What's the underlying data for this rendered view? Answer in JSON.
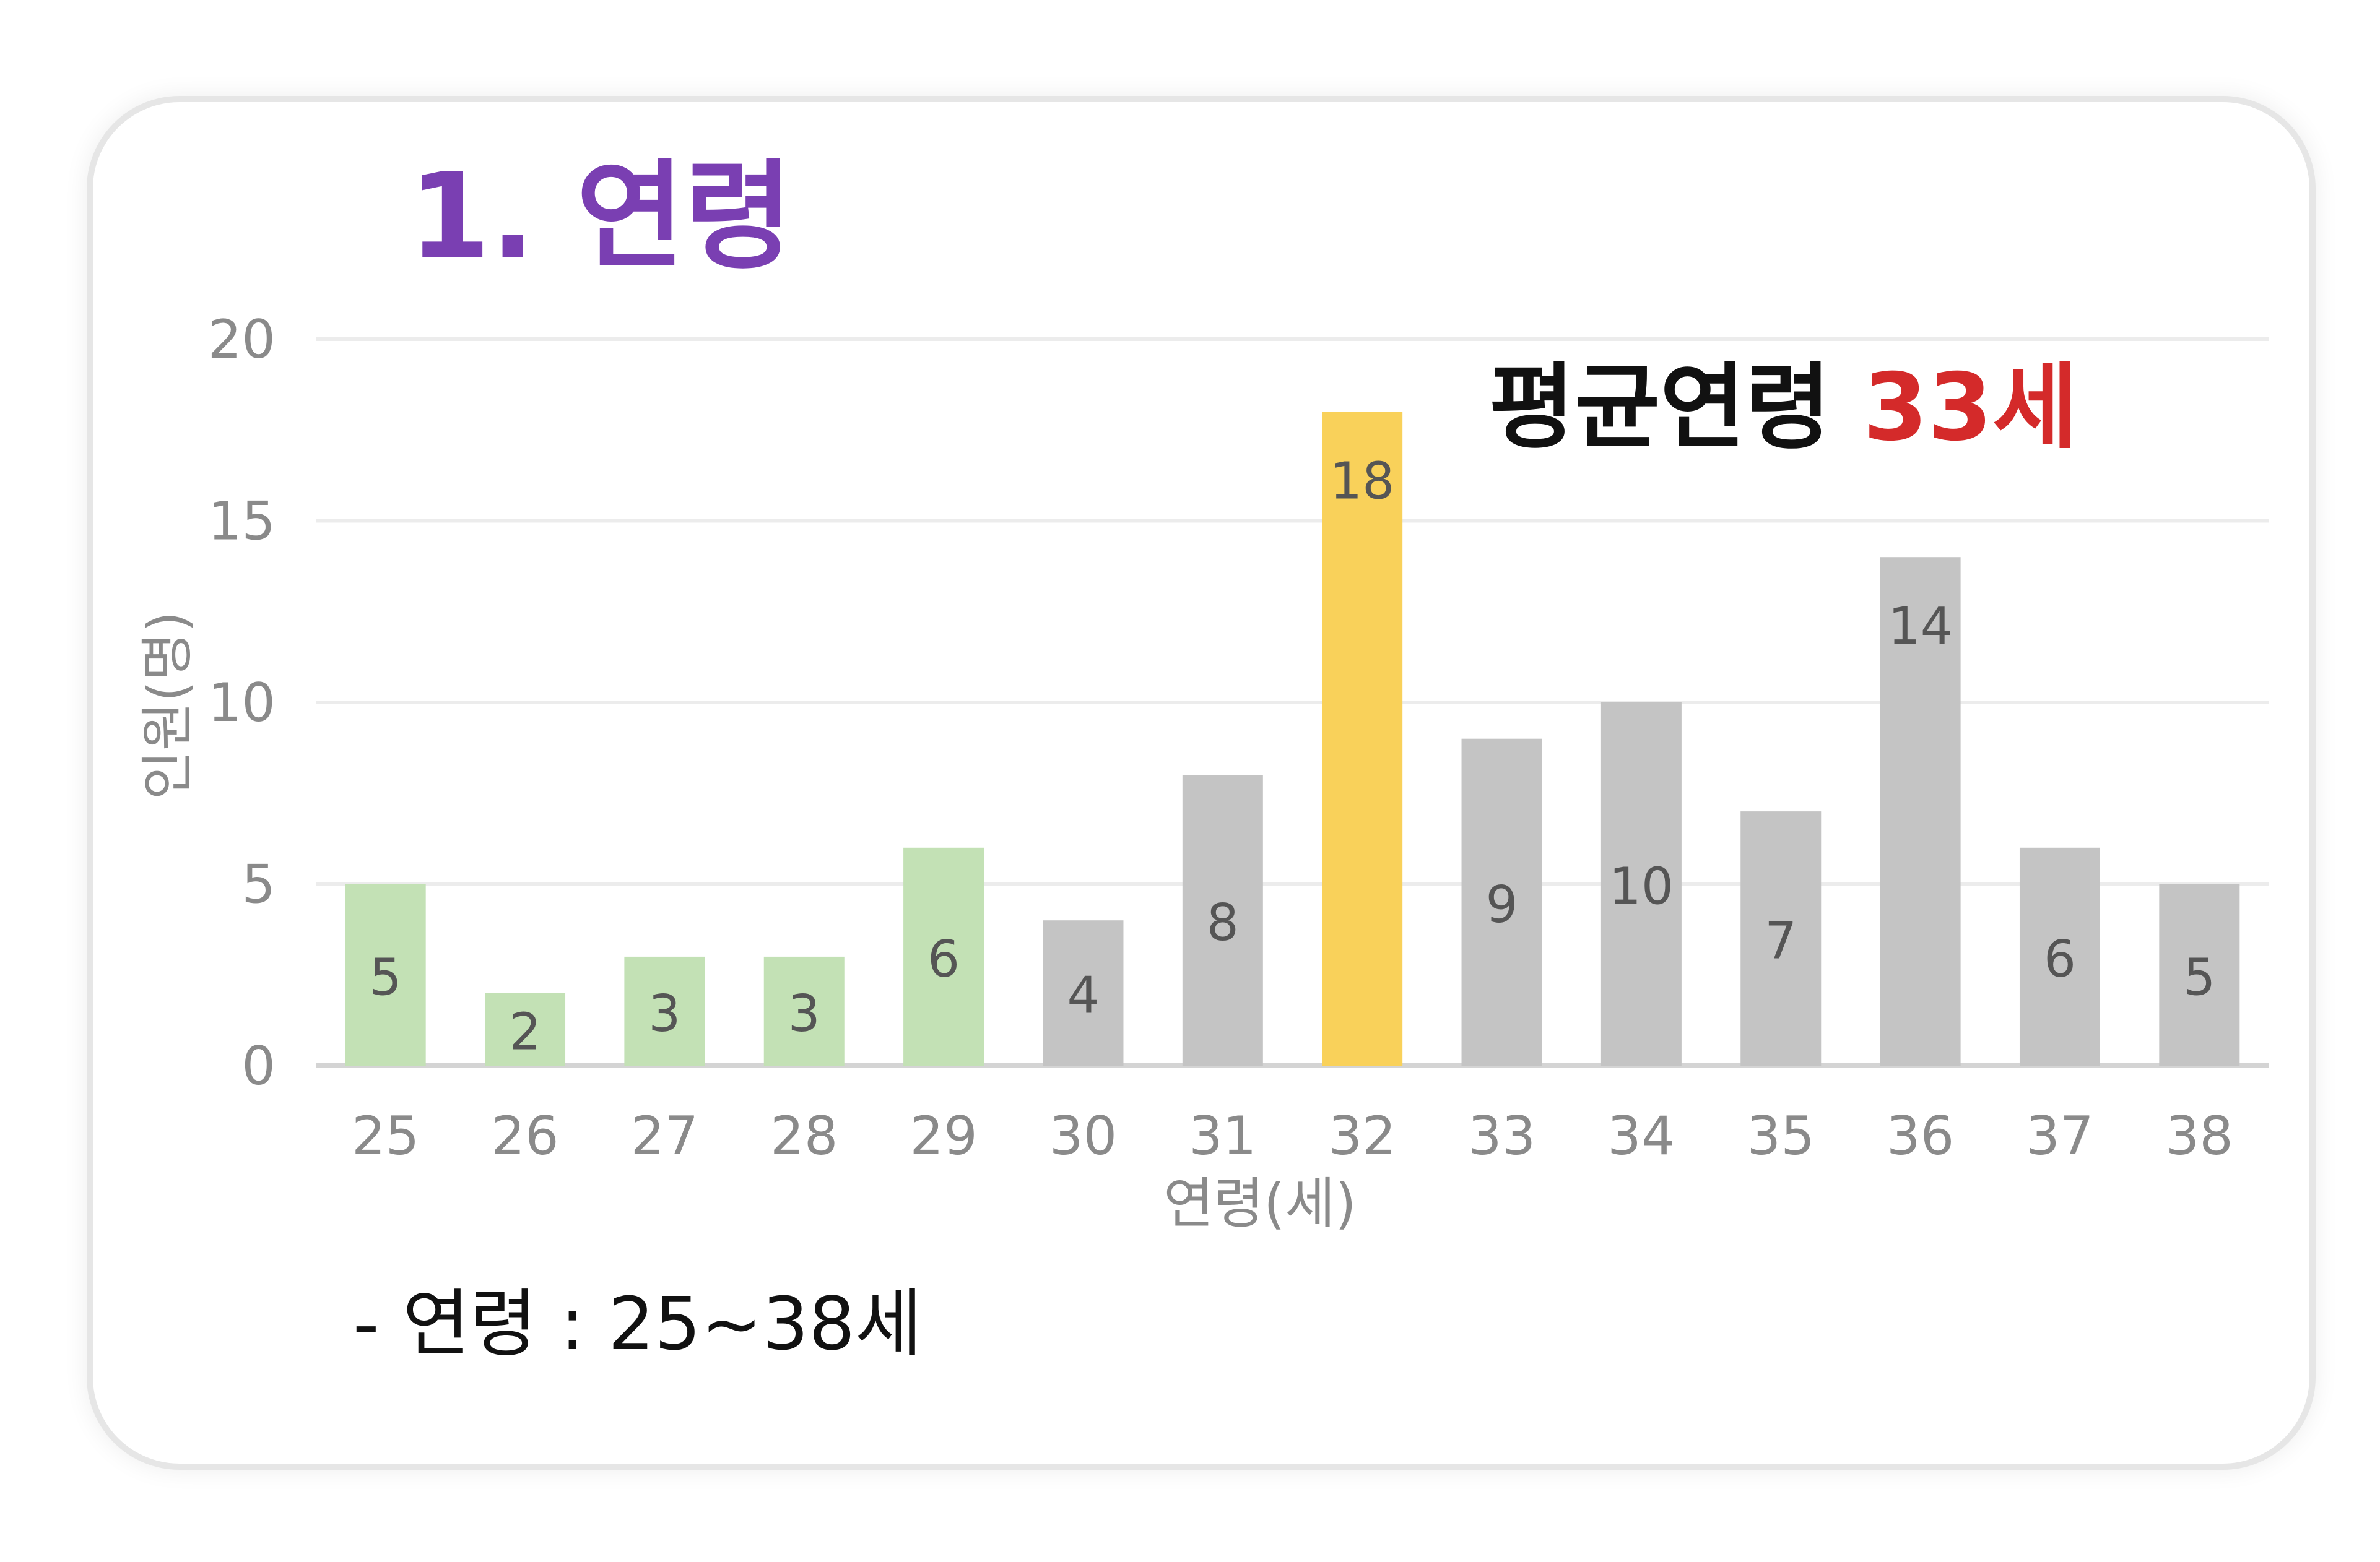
{
  "colors": {
    "title": "#7a3fb2",
    "highlight_value": "#d42a2a",
    "bar_green": "#c3e1b5",
    "bar_gray": "#c4c4c4",
    "bar_yellow": "#f9d15a",
    "grid": "#ececec",
    "axis_text": "#8a8a8a",
    "data_label": "#555555",
    "annotation_text": "#111111"
  },
  "title": "1. 연령",
  "annotation": {
    "label": "평균연령 ",
    "value": "33세"
  },
  "note": "- 연령 : 25~38세",
  "chart_data": {
    "type": "bar",
    "xlabel": "연령(세)",
    "ylabel": "인원(명)",
    "ylim": [
      0,
      20
    ],
    "yticks": [
      0,
      5,
      10,
      15,
      20
    ],
    "grid": true,
    "categories": [
      "25",
      "26",
      "27",
      "28",
      "29",
      "30",
      "31",
      "32",
      "33",
      "34",
      "35",
      "36",
      "37",
      "38"
    ],
    "values": [
      5,
      2,
      3,
      3,
      6,
      4,
      8,
      18,
      9,
      10,
      7,
      14,
      6,
      5
    ],
    "bar_colors": [
      "green",
      "green",
      "green",
      "green",
      "green",
      "gray",
      "gray",
      "yellow",
      "gray",
      "gray",
      "gray",
      "gray",
      "gray",
      "gray"
    ],
    "data_labels": true
  }
}
